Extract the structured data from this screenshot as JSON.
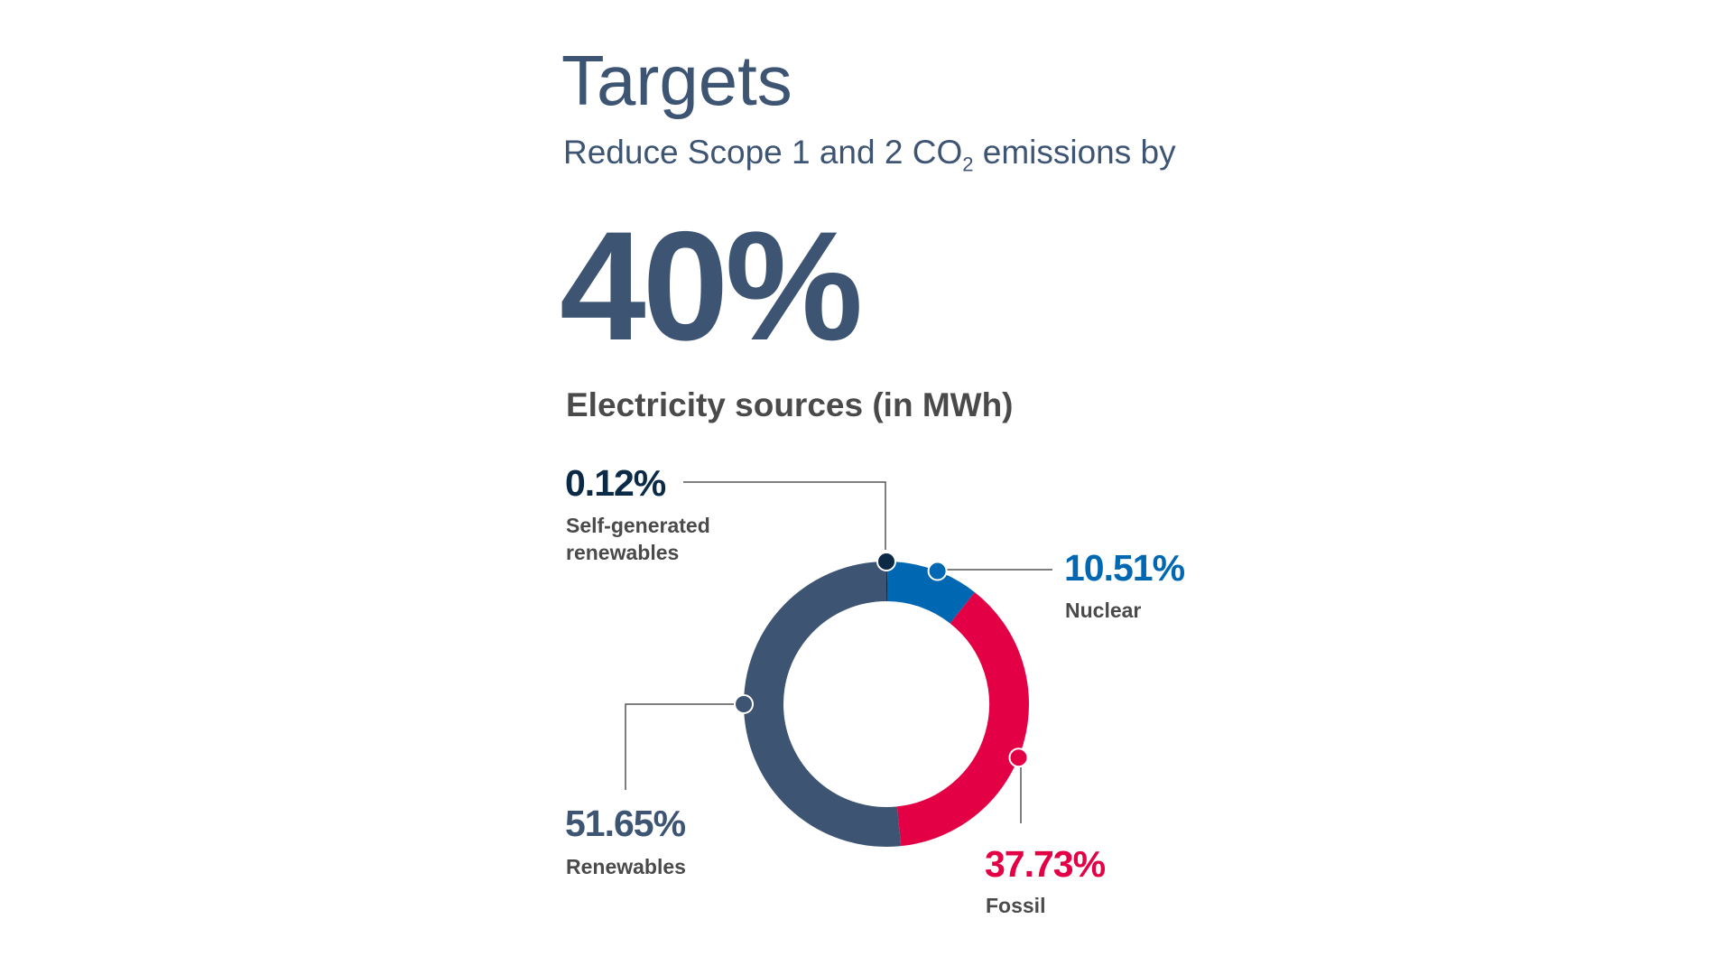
{
  "header": {
    "title": "Targets",
    "subtitle_pre": "Reduce Scope 1 and 2 CO",
    "subtitle_sub": "2",
    "subtitle_post": " emissions by",
    "target_value": "40%"
  },
  "chart_data": {
    "type": "pie",
    "title": "Electricity sources (in MWh)",
    "donut": true,
    "slices": [
      {
        "name": "Self-generated renewables",
        "value": 0.12,
        "label": "0.12%",
        "color": "#0b2a45"
      },
      {
        "name": "Nuclear",
        "value": 10.51,
        "label": "10.51%",
        "color": "#0068b3"
      },
      {
        "name": "Fossil",
        "value": 37.73,
        "label": "37.73%",
        "color": "#e30045"
      },
      {
        "name": "Renewables",
        "value": 51.65,
        "label": "51.65%",
        "color": "#3d5573"
      }
    ]
  }
}
